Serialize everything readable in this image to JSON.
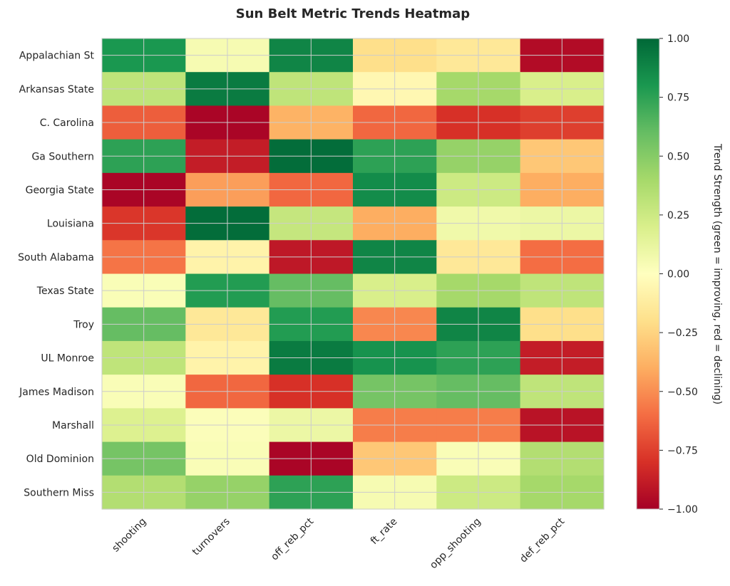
{
  "chart_data": {
    "type": "heatmap",
    "title": "Sun Belt Metric Trends Heatmap",
    "xlabel": "",
    "ylabel": "",
    "columns": [
      "shooting",
      "turnovers",
      "off_reb_pct",
      "ft_rate",
      "opp_shooting",
      "def_reb_pct"
    ],
    "rows": [
      "Appalachian St",
      "Arkansas State",
      "C. Carolina",
      "Ga Southern",
      "Georgia State",
      "Louisiana",
      "South Alabama",
      "Texas State",
      "Troy",
      "UL Monroe",
      "James Madison",
      "Marshall",
      "Old Dominion",
      "Southern Miss"
    ],
    "values": [
      [
        0.8,
        0.05,
        0.88,
        -0.2,
        -0.15,
        -0.95
      ],
      [
        0.3,
        0.92,
        0.3,
        -0.05,
        0.4,
        0.2
      ],
      [
        -0.65,
        -0.98,
        -0.38,
        -0.62,
        -0.8,
        -0.75
      ],
      [
        0.75,
        -0.88,
        0.98,
        0.75,
        0.45,
        -0.3
      ],
      [
        -0.98,
        -0.45,
        -0.62,
        0.85,
        0.25,
        -0.4
      ],
      [
        -0.78,
        0.98,
        0.28,
        -0.4,
        0.08,
        0.1
      ],
      [
        -0.58,
        -0.08,
        -0.9,
        0.88,
        -0.15,
        -0.6
      ],
      [
        0.03,
        0.78,
        0.6,
        0.2,
        0.4,
        0.3
      ],
      [
        0.6,
        -0.15,
        0.78,
        -0.52,
        0.88,
        -0.2
      ],
      [
        0.3,
        -0.08,
        0.92,
        0.82,
        0.75,
        -0.88
      ],
      [
        0.03,
        -0.62,
        -0.8,
        0.55,
        0.6,
        0.3
      ],
      [
        0.18,
        0.02,
        0.1,
        -0.55,
        -0.55,
        -0.92
      ],
      [
        0.55,
        0.03,
        -0.98,
        -0.3,
        0.03,
        0.35
      ],
      [
        0.35,
        0.45,
        0.75,
        0.05,
        0.25,
        0.4
      ]
    ],
    "colorbar": {
      "label": "Trend Strength (green = improving, red = declining)",
      "range": [
        -1,
        1
      ],
      "ticks": [
        1.0,
        0.75,
        0.5,
        0.25,
        0.0,
        -0.25,
        -0.5,
        -0.75,
        -1.0
      ],
      "tick_labels": [
        "1.00",
        "0.75",
        "0.50",
        "0.25",
        "0.00",
        "−0.25",
        "−0.50",
        "−0.75",
        "−1.00"
      ],
      "colormap": "RdYlGn"
    },
    "grid": true
  }
}
